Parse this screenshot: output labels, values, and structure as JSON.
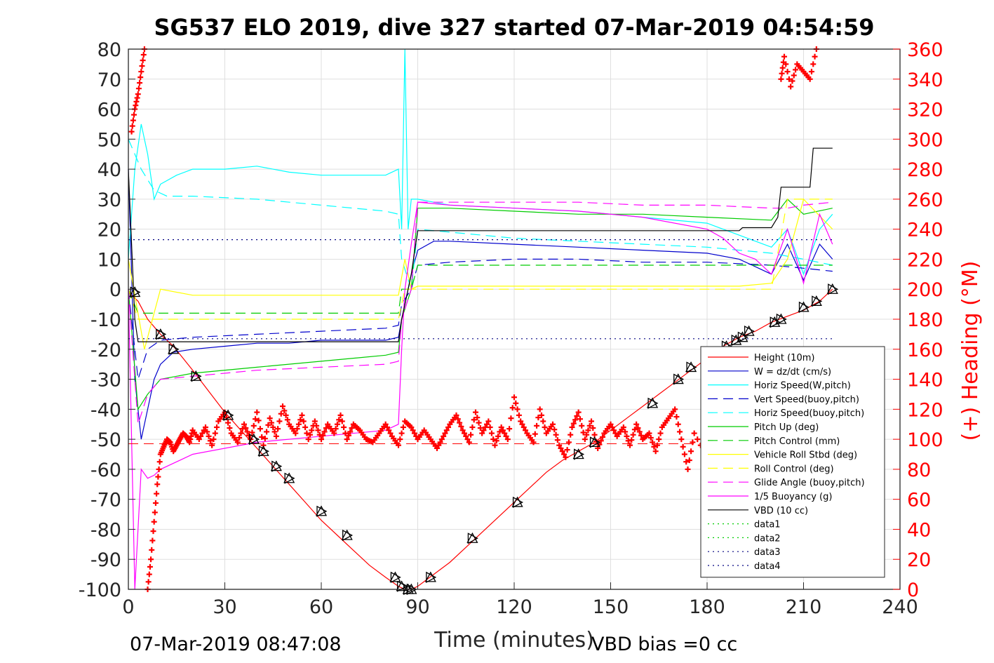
{
  "chart_data": {
    "type": "line",
    "title": "SG537 ELO 2019, dive 327 started 07-Mar-2019 04:54:59",
    "xlabel": "Time (minutes)",
    "ylabel": "",
    "y2label": "(+) Heading (°M)",
    "xlim": [
      0,
      240
    ],
    "ylim": [
      -100,
      80
    ],
    "y2lim": [
      0,
      360
    ],
    "xticks": [
      "0",
      "30",
      "60",
      "90",
      "120",
      "150",
      "180",
      "210",
      "240"
    ],
    "yticks": [
      "80",
      "70",
      "60",
      "50",
      "40",
      "30",
      "20",
      "10",
      "0",
      "-10",
      "-20",
      "-30",
      "-40",
      "-50",
      "-60",
      "-70",
      "-80",
      "-90",
      "-100"
    ],
    "y2ticks": [
      "360",
      "340",
      "320",
      "300",
      "280",
      "260",
      "240",
      "220",
      "200",
      "180",
      "160",
      "140",
      "120",
      "100",
      "80",
      "60",
      "40",
      "20",
      "0"
    ],
    "grid": true,
    "legend_position": "bottom-right",
    "footer_left": "07-Mar-2019 08:47:08",
    "footer_right": "VBD bias =0 cc",
    "series": [
      {
        "name": "Height (10m)",
        "color": "#ff0000",
        "style": "solid",
        "x": [
          0,
          3,
          6,
          10,
          14,
          20,
          25,
          30,
          35,
          40,
          45,
          50,
          55,
          60,
          65,
          70,
          75,
          80,
          84,
          86,
          88,
          90,
          95,
          100,
          105,
          110,
          115,
          120,
          125,
          130,
          135,
          140,
          145,
          150,
          155,
          160,
          165,
          170,
          175,
          180,
          185,
          190,
          195,
          200,
          205,
          210,
          215,
          219
        ],
        "y": [
          -1,
          -4,
          -10,
          -15,
          -19,
          -27,
          -34,
          -41,
          -47,
          -53,
          -59,
          -65,
          -71,
          -77,
          -82,
          -87,
          -92,
          -96,
          -99,
          -100,
          -100,
          -99,
          -95,
          -91,
          -86,
          -81,
          -76,
          -71,
          -66,
          -61,
          -57,
          -54,
          -51,
          -47,
          -43,
          -39,
          -35,
          -31,
          -27,
          -23,
          -19,
          -16,
          -14,
          -11,
          -9,
          -7,
          -4,
          0
        ]
      },
      {
        "name": "W = dz/dt (cm/s)",
        "color": "#0000cc",
        "style": "solid",
        "x": [
          0,
          2,
          4,
          6,
          8,
          10,
          14,
          20,
          30,
          40,
          50,
          60,
          70,
          80,
          84,
          85,
          86,
          88,
          90,
          95,
          100,
          120,
          140,
          160,
          180,
          190,
          200,
          205,
          210,
          215,
          219
        ],
        "y": [
          40,
          -30,
          -50,
          -40,
          -30,
          -25,
          -21,
          -20,
          -19,
          -18,
          -18,
          -17,
          -17,
          -17,
          -16,
          -10,
          -5,
          5,
          13,
          16,
          16,
          15,
          14,
          13,
          12,
          10,
          5,
          15,
          3,
          15,
          10
        ]
      },
      {
        "name": "Horiz Speed(W,pitch)",
        "color": "#00ffff",
        "style": "solid",
        "x": [
          0,
          2,
          4,
          6,
          8,
          10,
          15,
          20,
          30,
          40,
          50,
          60,
          70,
          80,
          84,
          85,
          86,
          87,
          88,
          90,
          95,
          100,
          120,
          140,
          160,
          180,
          190,
          200,
          205,
          210,
          215,
          219
        ],
        "y": [
          10,
          40,
          55,
          45,
          30,
          35,
          38,
          40,
          40,
          41,
          39,
          38,
          38,
          38,
          40,
          20,
          80,
          20,
          30,
          30,
          29,
          28,
          27,
          26,
          24,
          22,
          18,
          14,
          20,
          5,
          20,
          25
        ]
      },
      {
        "name": "Vert Speed(buoy,pitch)",
        "color": "#0000cc",
        "style": "dash",
        "x": [
          0,
          3,
          6,
          10,
          20,
          40,
          60,
          80,
          84,
          85,
          88,
          90,
          100,
          120,
          140,
          160,
          180,
          200,
          210,
          219
        ],
        "y": [
          0,
          -30,
          -20,
          -17,
          -16,
          -15,
          -14,
          -13,
          -12,
          -5,
          0,
          8,
          9,
          10,
          10,
          9,
          9,
          8,
          7,
          6
        ]
      },
      {
        "name": "Horiz Speed(buoy,pitch)",
        "color": "#00ffff",
        "style": "dash",
        "x": [
          0,
          4,
          8,
          12,
          20,
          40,
          60,
          80,
          84,
          85,
          88,
          90,
          100,
          120,
          140,
          160,
          180,
          200,
          210,
          219
        ],
        "y": [
          50,
          40,
          33,
          31,
          31,
          30,
          28,
          26,
          25,
          10,
          0,
          20,
          19,
          17,
          16,
          15,
          14,
          12,
          10,
          8
        ]
      },
      {
        "name": "Pitch Up (deg)",
        "color": "#00cc00",
        "style": "solid",
        "x": [
          0,
          3,
          6,
          10,
          20,
          40,
          60,
          80,
          84,
          85,
          88,
          90,
          100,
          120,
          140,
          160,
          180,
          200,
          205,
          210,
          219
        ],
        "y": [
          0,
          -40,
          -35,
          -30,
          -28,
          -26,
          -24,
          -22,
          -21,
          -10,
          0,
          27,
          27,
          26,
          25,
          25,
          24,
          23,
          30,
          25,
          27
        ]
      },
      {
        "name": "Pitch Control (mm)",
        "color": "#00cc00",
        "style": "dash",
        "x": [
          0,
          3,
          6,
          10,
          20,
          40,
          60,
          80,
          84,
          85,
          88,
          90,
          100,
          120,
          140,
          160,
          180,
          200,
          210,
          219
        ],
        "y": [
          0,
          -8,
          -8,
          -8,
          -8,
          -8,
          -8,
          -8,
          -8,
          0,
          0,
          8,
          8,
          8,
          8,
          8,
          8,
          8,
          8,
          8
        ]
      },
      {
        "name": "Vehicle Roll Stbd (deg)",
        "color": "#ffff00",
        "style": "solid",
        "x": [
          0,
          5,
          10,
          20,
          30,
          40,
          50,
          60,
          70,
          80,
          84,
          86,
          88,
          90,
          100,
          120,
          140,
          160,
          180,
          190,
          200,
          205,
          210,
          219
        ],
        "y": [
          10,
          -20,
          0,
          -2,
          -2,
          -2,
          -2,
          -2,
          -2,
          -2,
          -2,
          10,
          0,
          1,
          1,
          1,
          1,
          1,
          1,
          1,
          2,
          10,
          30,
          20
        ]
      },
      {
        "name": "Roll Control (deg)",
        "color": "#ffff00",
        "style": "dash",
        "x": [
          0,
          3,
          6,
          10,
          30,
          60,
          84,
          86,
          88,
          90,
          120,
          150,
          180,
          200,
          205,
          210,
          219
        ],
        "y": [
          0,
          -10,
          -10,
          -10,
          -10,
          -10,
          -10,
          0,
          0,
          0,
          0,
          0,
          0,
          0,
          30,
          30,
          30
        ]
      },
      {
        "name": "Glide Angle (buoy,pitch)",
        "color": "#ff00ff",
        "style": "dash",
        "x": [
          0,
          3,
          6,
          10,
          20,
          40,
          60,
          80,
          84,
          85,
          88,
          90,
          100,
          120,
          140,
          160,
          180,
          200,
          205,
          210,
          219
        ],
        "y": [
          0,
          -45,
          -35,
          -30,
          -29,
          -27,
          -26,
          -25,
          -24,
          -10,
          0,
          29,
          29,
          29,
          29,
          28,
          28,
          27,
          27,
          28,
          29
        ]
      },
      {
        "name": "1/5 Buoyancy (g)",
        "color": "#ff00ff",
        "style": "solid",
        "x": [
          0,
          2,
          4,
          6,
          8,
          10,
          20,
          40,
          60,
          80,
          84,
          85,
          86,
          88,
          90,
          100,
          120,
          140,
          160,
          180,
          185,
          190,
          195,
          200,
          205,
          210,
          215,
          219
        ],
        "y": [
          0,
          -100,
          -60,
          -63,
          -62,
          -60,
          -55,
          -51,
          -49,
          -47,
          -45,
          -20,
          0,
          15,
          29,
          28,
          27,
          26,
          24,
          20,
          17,
          12,
          10,
          5,
          20,
          2,
          25,
          15
        ]
      },
      {
        "name": "VBD (10 cc)",
        "color": "#000000",
        "style": "solid",
        "x": [
          0,
          2,
          3,
          84,
          85,
          86,
          87,
          88,
          90,
          100,
          120,
          140,
          160,
          180,
          190,
          191,
          200,
          202,
          203,
          210,
          212,
          213,
          219
        ],
        "y": [
          40,
          -10,
          -17.5,
          -17.5,
          -10,
          -5,
          0,
          5,
          19.5,
          19.5,
          19.5,
          19.5,
          19.5,
          19.5,
          19.5,
          20.5,
          20.5,
          24,
          34,
          34,
          34,
          47,
          47
        ]
      },
      {
        "name": "data1",
        "color": "#00cc00",
        "style": "dot",
        "x": [],
        "y": []
      },
      {
        "name": "data2",
        "color": "#00cc00",
        "style": "dot",
        "x": [],
        "y": []
      },
      {
        "name": "data3",
        "color": "#000080",
        "style": "dot",
        "x": [
          0,
          219
        ],
        "y": [
          16.5,
          16.5
        ]
      },
      {
        "name": "data4",
        "color": "#000080",
        "style": "dot",
        "x": [
          0,
          219
        ],
        "y": [
          -16.5,
          -16.5
        ]
      }
    ],
    "reference_lines": [
      {
        "color": "#ff0000",
        "style": "dash",
        "y": -51.5,
        "x": [
          0,
          219
        ]
      }
    ],
    "heading": {
      "name": "Heading",
      "color": "#ff0000",
      "marker": "+",
      "x": [
        1,
        2,
        3,
        4,
        5,
        6,
        7,
        8,
        9,
        10,
        11,
        12,
        13,
        14,
        15,
        16,
        17,
        18,
        19,
        20,
        22,
        24,
        26,
        28,
        30,
        32,
        34,
        36,
        38,
        40,
        42,
        44,
        46,
        48,
        50,
        52,
        54,
        56,
        58,
        60,
        62,
        64,
        66,
        68,
        70,
        72,
        74,
        76,
        78,
        80,
        82,
        84,
        86,
        88,
        90,
        92,
        94,
        96,
        98,
        100,
        102,
        104,
        106,
        108,
        110,
        112,
        114,
        116,
        118,
        120,
        122,
        124,
        126,
        128,
        130,
        132,
        134,
        136,
        138,
        140,
        142,
        144,
        146,
        148,
        150,
        152,
        154,
        156,
        158,
        160,
        162,
        164,
        166,
        168,
        170,
        172,
        174,
        176,
        180,
        184,
        188,
        192,
        196,
        200,
        203,
        204,
        206,
        208,
        210,
        212,
        214
      ],
      "y": [
        305,
        320,
        330,
        345,
        360,
        0,
        20,
        45,
        70,
        90,
        95,
        100,
        98,
        92,
        96,
        100,
        104,
        102,
        98,
        106,
        100,
        108,
        96,
        112,
        118,
        104,
        98,
        110,
        100,
        118,
        96,
        114,
        102,
        122,
        110,
        104,
        116,
        100,
        112,
        100,
        110,
        104,
        116,
        100,
        110,
        106,
        100,
        98,
        104,
        110,
        102,
        96,
        112,
        108,
        100,
        106,
        100,
        94,
        102,
        110,
        116,
        106,
        98,
        118,
        104,
        112,
        96,
        108,
        100,
        128,
        112,
        104,
        98,
        120,
        104,
        110,
        96,
        88,
        108,
        118,
        100,
        112,
        94,
        104,
        110,
        102,
        108,
        96,
        110,
        100,
        104,
        92,
        108,
        114,
        120,
        100,
        80,
        104,
        88,
        110,
        96,
        100,
        110,
        104,
        340,
        355,
        335,
        350,
        345,
        340,
        360
      ]
    },
    "triangle_markers": {
      "x": [
        2,
        10,
        14,
        21,
        31,
        39,
        42,
        46,
        50,
        60,
        68,
        83,
        85,
        87,
        88,
        94,
        107,
        121,
        140,
        145,
        163,
        171,
        175,
        186,
        189,
        191,
        193,
        201,
        203,
        210,
        214,
        219
      ],
      "y": [
        -1,
        -15,
        -20,
        -29,
        -42,
        -50,
        -54,
        -59,
        -63,
        -74,
        -82,
        -96,
        -99,
        -100,
        -100,
        -96,
        -83,
        -71,
        -55,
        -51,
        -38,
        -30,
        -26,
        -19,
        -17,
        -16,
        -14,
        -11,
        -10,
        -6,
        -4,
        0
      ]
    }
  }
}
